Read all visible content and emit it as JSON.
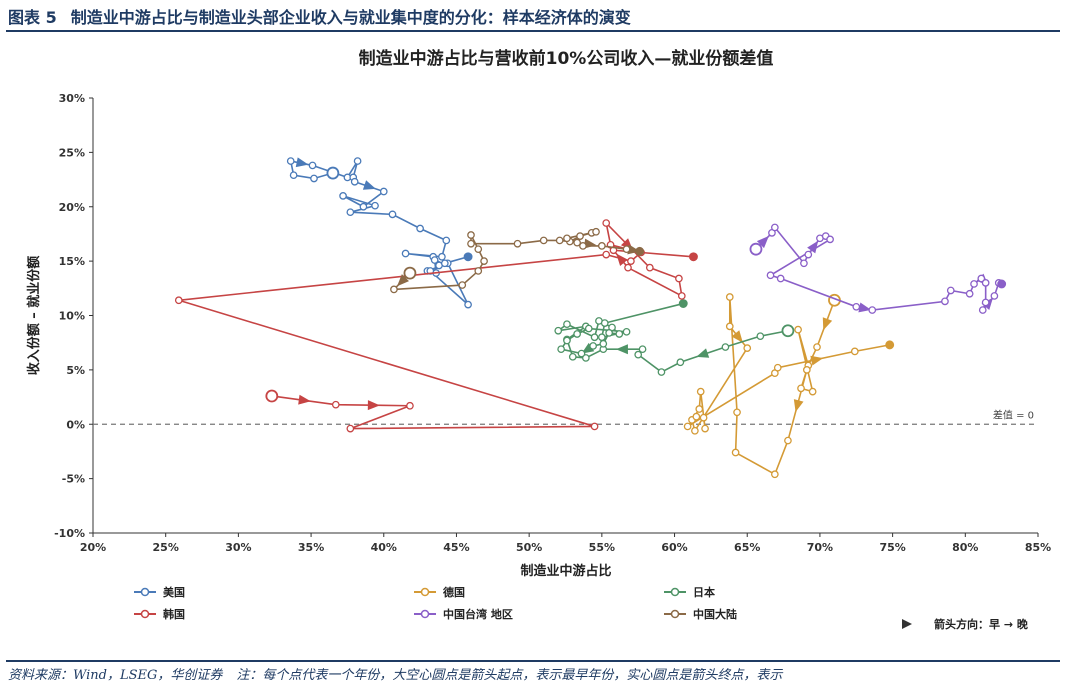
{
  "figure": {
    "number": "图表 5",
    "title": "制造业中游占比与制造业头部企业收入与就业集中度的分化：样本经济体的演变",
    "source": "资料来源：Wind，LSEG，华创证券",
    "note": "注：每个点代表一个年份，大空心圆点是箭头起点，表示最早年份，实心圆点是箭头终点，表示"
  },
  "colors": {
    "美国": "#4a7ab8",
    "德国": "#d49a35",
    "日本": "#4e9366",
    "韩国": "#c64444",
    "中国台湾 地区": "#8a5fc8",
    "中国大陆": "#8b6a47",
    "axis": "#333333",
    "title_blue": "#1f3b63"
  },
  "chart_data": {
    "type": "scatter",
    "title": "制造业中游占比与营收前10%公司收入—就业份额差值",
    "xlabel": "制造业中游占比",
    "ylabel": "收入份额 – 就业份额",
    "xlim": [
      20,
      85
    ],
    "ylim": [
      -10,
      30
    ],
    "xticks": [
      "20%",
      "25%",
      "30%",
      "35%",
      "40%",
      "45%",
      "50%",
      "55%",
      "60%",
      "65%",
      "70%",
      "75%",
      "80%",
      "85%"
    ],
    "yticks": [
      "-10%",
      "-5%",
      "0%",
      "5%",
      "10%",
      "15%",
      "20%",
      "25%",
      "30%"
    ],
    "reference_line": {
      "y": 0,
      "label": "差值 = 0"
    },
    "grid": false,
    "legend_placement": "bottom",
    "arrow_note": "箭头方向：早 → 晚",
    "series": [
      {
        "name": "美国",
        "points": [
          [
            36.5,
            23.1
          ],
          [
            35.2,
            22.6
          ],
          [
            33.8,
            22.9
          ],
          [
            33.6,
            24.2
          ],
          [
            35.1,
            23.8
          ],
          [
            37.5,
            22.7
          ],
          [
            38.2,
            24.2
          ],
          [
            37.9,
            22.7
          ],
          [
            38.0,
            22.3
          ],
          [
            40.0,
            21.4
          ],
          [
            38.6,
            20.0
          ],
          [
            37.2,
            21.0
          ],
          [
            39.4,
            20.1
          ],
          [
            37.7,
            19.5
          ],
          [
            40.6,
            19.3
          ],
          [
            42.5,
            18.0
          ],
          [
            44.3,
            16.9
          ],
          [
            44.0,
            15.4
          ],
          [
            41.5,
            15.7
          ],
          [
            43.4,
            15.4
          ],
          [
            43.8,
            14.6
          ],
          [
            43.5,
            15.1
          ],
          [
            43.6,
            13.9
          ],
          [
            43.0,
            14.1
          ],
          [
            44.4,
            14.8
          ],
          [
            45.8,
            11.0
          ],
          [
            43.2,
            14.1
          ],
          [
            44.2,
            14.8
          ],
          [
            45.8,
            15.4
          ]
        ],
        "arrows": [
          [
            3,
            4
          ],
          [
            8,
            9
          ],
          [
            20,
            21
          ]
        ]
      },
      {
        "name": "德国",
        "points": [
          [
            71.0,
            11.4
          ],
          [
            69.8,
            7.1
          ],
          [
            69.2,
            5.4
          ],
          [
            68.5,
            8.7
          ],
          [
            69.5,
            3.0
          ],
          [
            68.7,
            3.3
          ],
          [
            69.1,
            5.0
          ],
          [
            67.8,
            -1.5
          ],
          [
            66.9,
            -4.6
          ],
          [
            64.2,
            -2.6
          ],
          [
            64.3,
            1.1
          ],
          [
            63.8,
            11.7
          ],
          [
            63.8,
            9.0
          ],
          [
            65.0,
            7.0
          ],
          [
            61.4,
            -0.6
          ],
          [
            61.2,
            0.4
          ],
          [
            61.7,
            1.4
          ],
          [
            61.8,
            3.0
          ],
          [
            62.1,
            -0.4
          ],
          [
            62.0,
            0.6
          ],
          [
            61.5,
            0.7
          ],
          [
            60.9,
            -0.2
          ],
          [
            66.9,
            4.7
          ],
          [
            67.1,
            5.2
          ],
          [
            72.4,
            6.7
          ],
          [
            74.8,
            7.3
          ]
        ],
        "arrows": [
          [
            0,
            1
          ],
          [
            6,
            7
          ],
          [
            12,
            13
          ],
          [
            23,
            24
          ]
        ]
      },
      {
        "name": "日本",
        "points": [
          [
            67.8,
            8.6
          ],
          [
            65.9,
            8.1
          ],
          [
            63.5,
            7.1
          ],
          [
            60.4,
            5.7
          ],
          [
            59.1,
            4.8
          ],
          [
            57.5,
            6.4
          ],
          [
            57.8,
            6.9
          ],
          [
            55.1,
            6.9
          ],
          [
            53.9,
            6.1
          ],
          [
            53.0,
            6.2
          ],
          [
            52.6,
            7.8
          ],
          [
            53.9,
            9.0
          ],
          [
            52.0,
            8.6
          ],
          [
            52.6,
            9.2
          ],
          [
            54.5,
            8.0
          ],
          [
            54.8,
            9.5
          ],
          [
            55.7,
            8.9
          ],
          [
            56.2,
            8.3
          ],
          [
            55.5,
            8.4
          ],
          [
            55.1,
            7.4
          ],
          [
            54.4,
            7.2
          ],
          [
            53.6,
            6.5
          ],
          [
            52.2,
            6.9
          ],
          [
            52.6,
            7.7
          ],
          [
            53.3,
            8.3
          ],
          [
            54.1,
            8.8
          ],
          [
            56.7,
            8.5
          ],
          [
            55.0,
            8.0
          ],
          [
            55.2,
            9.3
          ],
          [
            60.6,
            11.1
          ]
        ],
        "arrows": [
          [
            2,
            3
          ],
          [
            6,
            7
          ],
          [
            20,
            21
          ]
        ]
      },
      {
        "name": "韩国",
        "points": [
          [
            32.3,
            2.6
          ],
          [
            36.7,
            1.8
          ],
          [
            41.8,
            1.7
          ],
          [
            37.7,
            -0.4
          ],
          [
            54.5,
            -0.2
          ],
          [
            25.9,
            11.4
          ],
          [
            55.3,
            15.6
          ],
          [
            57.0,
            15.0
          ],
          [
            57.7,
            15.8
          ],
          [
            55.6,
            16.5
          ],
          [
            55.3,
            18.5
          ],
          [
            58.3,
            14.4
          ],
          [
            60.3,
            13.4
          ],
          [
            60.5,
            11.8
          ],
          [
            56.8,
            14.4
          ],
          [
            55.8,
            16.0
          ],
          [
            61.3,
            15.4
          ]
        ],
        "arrows": [
          [
            0,
            1
          ],
          [
            1,
            2
          ],
          [
            10,
            11
          ],
          [
            14,
            15
          ]
        ]
      },
      {
        "name": "中国台湾 地区",
        "points": [
          [
            65.6,
            16.1
          ],
          [
            66.7,
            17.6
          ],
          [
            66.9,
            18.1
          ],
          [
            68.9,
            14.8
          ],
          [
            69.2,
            15.6
          ],
          [
            70.0,
            17.1
          ],
          [
            70.4,
            17.3
          ],
          [
            70.7,
            17.0
          ],
          [
            66.6,
            13.7
          ],
          [
            67.3,
            13.4
          ],
          [
            72.5,
            10.8
          ],
          [
            73.6,
            10.5
          ],
          [
            78.6,
            11.3
          ],
          [
            79.0,
            12.3
          ],
          [
            80.3,
            12.0
          ],
          [
            80.6,
            12.9
          ],
          [
            81.1,
            13.4
          ],
          [
            81.4,
            13.0
          ],
          [
            81.4,
            11.2
          ],
          [
            81.2,
            10.5
          ],
          [
            82.0,
            11.8
          ],
          [
            82.3,
            13.0
          ],
          [
            82.5,
            12.9
          ]
        ],
        "arrows": [
          [
            0,
            1
          ],
          [
            4,
            5
          ],
          [
            10,
            11
          ],
          [
            16,
            17
          ],
          [
            19,
            20
          ]
        ]
      },
      {
        "name": "中国大陆",
        "points": [
          [
            41.8,
            13.9
          ],
          [
            40.7,
            12.4
          ],
          [
            45.4,
            12.8
          ],
          [
            46.5,
            14.1
          ],
          [
            46.9,
            15.0
          ],
          [
            46.5,
            16.1
          ],
          [
            46.0,
            17.4
          ],
          [
            46.0,
            16.6
          ],
          [
            49.2,
            16.6
          ],
          [
            51.0,
            16.9
          ],
          [
            52.1,
            16.9
          ],
          [
            52.8,
            16.8
          ],
          [
            53.5,
            17.3
          ],
          [
            54.3,
            17.6
          ],
          [
            54.6,
            17.7
          ],
          [
            52.6,
            17.1
          ],
          [
            53.3,
            16.7
          ],
          [
            53.7,
            16.4
          ],
          [
            55.0,
            16.4
          ],
          [
            56.7,
            16.1
          ],
          [
            57.6,
            15.9
          ]
        ],
        "arrows": [
          [
            0,
            1
          ],
          [
            16,
            18
          ],
          [
            19,
            20
          ]
        ]
      }
    ]
  }
}
